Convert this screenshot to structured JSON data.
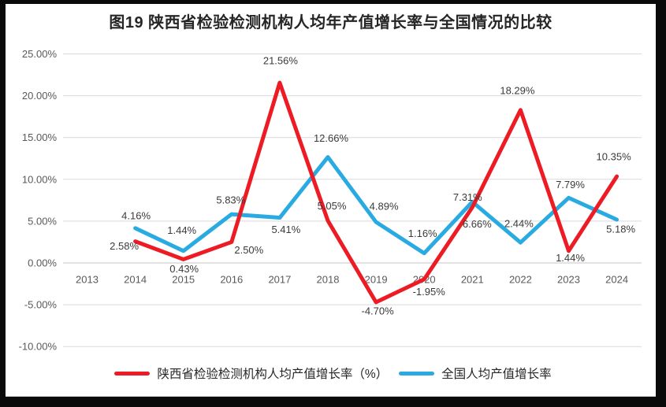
{
  "title": "图19 陕西省检验检测机构人均年产值增长率与全国情况的比较",
  "colors": {
    "shaanxi_line": "#ED1C24",
    "national_line": "#29ABE2",
    "gridline": "#D9D9D9",
    "zero_line": "#C6C6C6",
    "axis_text": "#595959",
    "data_label_text": "#3A3A3A",
    "title_text": "#262626",
    "frame": "#0a0a0a"
  },
  "chart_data": {
    "type": "line",
    "title": "图19 陕西省检验检测机构人均年产值增长率与全国情况的比较",
    "categories": [
      "2013",
      "2014",
      "2015",
      "2016",
      "2017",
      "2018",
      "2019",
      "2020",
      "2021",
      "2022",
      "2023",
      "2024"
    ],
    "series": [
      {
        "name": "陕西省检验检测机构人均产值增长率（%）",
        "color": "#ED1C24",
        "values": [
          null,
          2.58,
          0.43,
          2.5,
          21.56,
          5.05,
          -4.7,
          -1.95,
          6.66,
          18.29,
          1.44,
          10.35
        ]
      },
      {
        "name": "全国人均产值增长率",
        "color": "#29ABE2",
        "values": [
          null,
          4.16,
          1.44,
          5.83,
          5.41,
          12.66,
          4.89,
          1.16,
          7.31,
          2.44,
          7.79,
          5.18
        ]
      }
    ],
    "xlabel": "",
    "ylabel": "",
    "ylim": [
      -10,
      25
    ],
    "ytick_step": 5,
    "ytick_labels": [
      "25.00%",
      "20.00%",
      "15.00%",
      "10.00%",
      "5.00%",
      "0.00%",
      "-5.00%",
      "-10.00%"
    ],
    "grid": true,
    "data_labels": true,
    "legend_position": "bottom"
  }
}
